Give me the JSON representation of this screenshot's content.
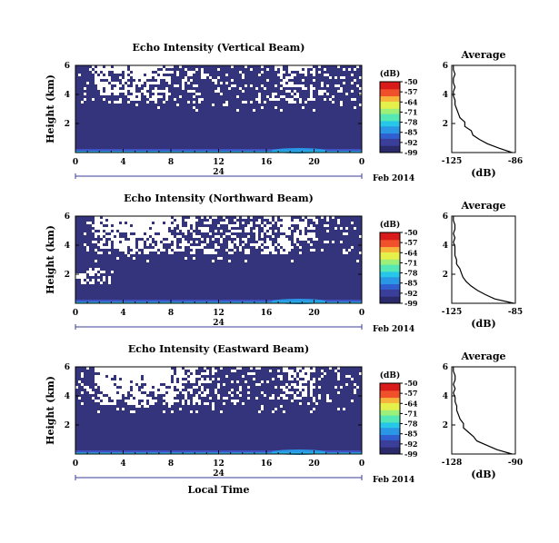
{
  "colors": {
    "field": "#34347c",
    "no_data": "#ffffff",
    "colormap": [
      "#2b2b6b",
      "#3a3f9a",
      "#2f5fd0",
      "#2a96e6",
      "#26c7e8",
      "#55e8b4",
      "#9cf07a",
      "#e6f04a",
      "#f7b43a",
      "#f0502a",
      "#d81a1a"
    ]
  },
  "shared": {
    "date_label": "Feb 2014",
    "local_time_label": "Local Time",
    "day_label": "24",
    "unit_label": "(dB)",
    "average_title": "Average",
    "height_label": "Height (km)",
    "x_ticks": [
      "0",
      "4",
      "8",
      "12",
      "16",
      "20",
      "0"
    ],
    "y_ticks": [
      "6",
      "4",
      "2"
    ],
    "avg_y_ticks": [
      "6",
      "4",
      "2"
    ],
    "colorbar_ticks": [
      "-50",
      "-57",
      "-64",
      "-71",
      "-78",
      "-85",
      "-92",
      "-99"
    ]
  },
  "chart_data": [
    {
      "type": "heatmap",
      "title": "Echo Intensity (Vertical Beam)",
      "x": "local time (hours)",
      "xlim": [
        0,
        24
      ],
      "ylim": [
        0,
        6
      ],
      "colorbar_range": [
        -99,
        -50
      ],
      "avg_title": "Average",
      "avg_xticks": [
        "-125",
        "-86"
      ],
      "avg_xlim": [
        -125,
        -86
      ],
      "avg_profile": {
        "height_km": [
          0.0,
          0.3,
          0.6,
          0.9,
          1.2,
          1.5,
          1.8,
          2.1,
          2.4,
          2.7,
          3.0,
          3.3,
          3.6,
          3.9,
          4.2,
          4.5,
          4.8,
          5.1,
          5.4,
          5.7,
          6.0
        ],
        "db": [
          -88,
          -96,
          -103,
          -108,
          -112,
          -113,
          -117,
          -117,
          -120,
          -121,
          -122,
          -123,
          -123,
          -124,
          -124,
          -123,
          -124,
          -124,
          -123,
          -124,
          -124
        ]
      }
    },
    {
      "type": "heatmap",
      "title": "Echo Intensity (Northward Beam)",
      "xlim": [
        0,
        24
      ],
      "ylim": [
        0,
        6
      ],
      "colorbar_range": [
        -99,
        -50
      ],
      "avg_title": "Average",
      "avg_xticks": [
        "-125",
        "-85"
      ],
      "avg_xlim": [
        -125,
        -85
      ],
      "avg_profile": {
        "height_km": [
          0.0,
          0.3,
          0.6,
          0.9,
          1.2,
          1.5,
          1.8,
          2.1,
          2.4,
          2.7,
          3.0,
          3.3,
          3.6,
          3.9,
          4.2,
          4.5,
          4.8,
          5.1,
          5.4,
          5.7,
          6.0
        ],
        "db": [
          -86,
          -98,
          -104,
          -109,
          -113,
          -116,
          -118,
          -119,
          -120,
          -122,
          -122,
          -123,
          -123,
          -123,
          -124,
          -123,
          -124,
          -123,
          -123,
          -124,
          -124
        ]
      }
    },
    {
      "type": "heatmap",
      "title": "Echo Intensity (Eastward Beam)",
      "xlim": [
        0,
        24
      ],
      "ylim": [
        0,
        6
      ],
      "colorbar_range": [
        -99,
        -50
      ],
      "avg_title": "Average",
      "avg_xticks": [
        "-128",
        "-90"
      ],
      "avg_xlim": [
        -128,
        -90
      ],
      "avg_profile": {
        "height_km": [
          0.0,
          0.3,
          0.6,
          0.9,
          1.2,
          1.5,
          1.8,
          2.1,
          2.4,
          2.7,
          3.0,
          3.3,
          3.6,
          3.9,
          4.2,
          4.5,
          4.8,
          5.1,
          5.4,
          5.7,
          6.0
        ],
        "db": [
          -92,
          -101,
          -107,
          -113,
          -115,
          -118,
          -121,
          -121,
          -123,
          -124,
          -125,
          -125,
          -126,
          -126,
          -127,
          -126,
          -127,
          -126,
          -126,
          -127,
          -127
        ]
      }
    }
  ]
}
